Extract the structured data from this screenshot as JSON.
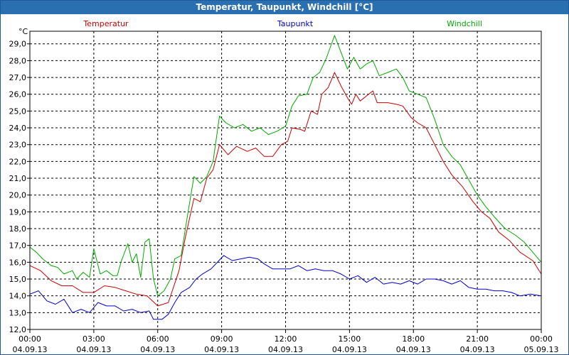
{
  "window": {
    "title": "Temperatur, Taupunkt, Windchill [°C]"
  },
  "chart_data": {
    "type": "line",
    "title": "Temperatur, Taupunkt, Windchill [°C]",
    "ylabel": "°C",
    "xlabel": "",
    "ylim": [
      12.0,
      29.75
    ],
    "xlim": [
      0,
      24
    ],
    "grid": true,
    "legend": "top",
    "y_ticks": [
      "12,0",
      "13,0",
      "14,0",
      "15,0",
      "16,0",
      "17,0",
      "18,0",
      "19,0",
      "20,0",
      "21,0",
      "22,0",
      "23,0",
      "24,0",
      "25,0",
      "26,0",
      "27,0",
      "28,0",
      "29,0"
    ],
    "x_ticks": [
      {
        "time": "00:00",
        "date": "04.09.13"
      },
      {
        "time": "03:00",
        "date": "04.09.13"
      },
      {
        "time": "06:00",
        "date": "04.09.13"
      },
      {
        "time": "09:00",
        "date": "04.09.13"
      },
      {
        "time": "12:00",
        "date": "04.09.13"
      },
      {
        "time": "15:00",
        "date": "04.09.13"
      },
      {
        "time": "18:00",
        "date": "04.09.13"
      },
      {
        "time": "21:00",
        "date": "04.09.13"
      },
      {
        "time": "00:00",
        "date": "05.09.13"
      }
    ],
    "series": [
      {
        "name": "Temperatur",
        "color": "#cc0000",
        "points": [
          [
            0,
            15.8
          ],
          [
            0.5,
            15.5
          ],
          [
            1,
            14.9
          ],
          [
            1.5,
            14.6
          ],
          [
            2,
            14.6
          ],
          [
            2.5,
            14.2
          ],
          [
            3,
            14.2
          ],
          [
            3.5,
            14.6
          ],
          [
            4,
            14.5
          ],
          [
            4.5,
            14.3
          ],
          [
            5,
            14.1
          ],
          [
            5.5,
            14.0
          ],
          [
            6,
            13.4
          ],
          [
            6.5,
            13.6
          ],
          [
            7,
            15.5
          ],
          [
            7.3,
            17.5
          ],
          [
            7.7,
            19.8
          ],
          [
            8,
            19.6
          ],
          [
            8.3,
            21.0
          ],
          [
            8.6,
            21.5
          ],
          [
            8.9,
            23.0
          ],
          [
            9.3,
            22.4
          ],
          [
            9.7,
            22.9
          ],
          [
            10.2,
            22.6
          ],
          [
            10.6,
            22.8
          ],
          [
            11,
            22.3
          ],
          [
            11.4,
            22.3
          ],
          [
            11.8,
            23.0
          ],
          [
            12.1,
            23.2
          ],
          [
            12.3,
            24.0
          ],
          [
            12.7,
            23.9
          ],
          [
            12.9,
            23.8
          ],
          [
            13.2,
            25.0
          ],
          [
            13.5,
            24.8
          ],
          [
            13.7,
            26.0
          ],
          [
            14.0,
            26.4
          ],
          [
            14.3,
            27.3
          ],
          [
            14.6,
            26.5
          ],
          [
            14.9,
            25.8
          ],
          [
            15.1,
            25.4
          ],
          [
            15.3,
            26.0
          ],
          [
            15.5,
            25.6
          ],
          [
            15.8,
            25.9
          ],
          [
            16.1,
            26.2
          ],
          [
            16.3,
            25.5
          ],
          [
            16.8,
            25.5
          ],
          [
            17.2,
            25.4
          ],
          [
            17.5,
            25.3
          ],
          [
            17.9,
            24.6
          ],
          [
            18.2,
            24.3
          ],
          [
            18.6,
            24.0
          ],
          [
            19.0,
            23.0
          ],
          [
            19.4,
            22.0
          ],
          [
            19.8,
            21.2
          ],
          [
            20.3,
            20.5
          ],
          [
            20.8,
            19.6
          ],
          [
            21.2,
            19.0
          ],
          [
            21.6,
            18.6
          ],
          [
            22.0,
            17.8
          ],
          [
            22.5,
            17.3
          ],
          [
            23.0,
            16.6
          ],
          [
            23.6,
            16.1
          ],
          [
            24,
            15.3
          ]
        ]
      },
      {
        "name": "Taupunkt",
        "color": "#0000cc",
        "points": [
          [
            0,
            14.1
          ],
          [
            0.4,
            14.3
          ],
          [
            0.8,
            13.7
          ],
          [
            1.2,
            13.5
          ],
          [
            1.6,
            13.8
          ],
          [
            2.0,
            13.0
          ],
          [
            2.4,
            13.2
          ],
          [
            2.8,
            13.0
          ],
          [
            3.2,
            13.6
          ],
          [
            3.6,
            13.4
          ],
          [
            4.0,
            13.4
          ],
          [
            4.4,
            13.1
          ],
          [
            4.8,
            13.2
          ],
          [
            5.2,
            13.0
          ],
          [
            5.6,
            13.1
          ],
          [
            5.8,
            12.6
          ],
          [
            6.2,
            12.6
          ],
          [
            6.5,
            12.9
          ],
          [
            6.8,
            13.6
          ],
          [
            7.1,
            14.2
          ],
          [
            7.5,
            14.5
          ],
          [
            7.8,
            15.0
          ],
          [
            8.1,
            15.3
          ],
          [
            8.5,
            15.6
          ],
          [
            8.8,
            16.0
          ],
          [
            9.1,
            16.4
          ],
          [
            9.5,
            16.1
          ],
          [
            9.9,
            16.2
          ],
          [
            10.3,
            16.3
          ],
          [
            10.7,
            16.2
          ],
          [
            11.0,
            15.9
          ],
          [
            11.4,
            15.6
          ],
          [
            11.8,
            15.6
          ],
          [
            12.2,
            15.6
          ],
          [
            12.6,
            15.8
          ],
          [
            13.0,
            15.5
          ],
          [
            13.4,
            15.6
          ],
          [
            13.8,
            15.5
          ],
          [
            14.2,
            15.5
          ],
          [
            14.6,
            15.3
          ],
          [
            15.0,
            15.0
          ],
          [
            15.4,
            15.2
          ],
          [
            15.8,
            14.8
          ],
          [
            16.2,
            15.1
          ],
          [
            16.6,
            14.7
          ],
          [
            17.0,
            14.8
          ],
          [
            17.4,
            14.7
          ],
          [
            17.8,
            14.9
          ],
          [
            18.2,
            14.7
          ],
          [
            18.6,
            15.0
          ],
          [
            19.0,
            15.0
          ],
          [
            19.4,
            14.9
          ],
          [
            19.8,
            14.7
          ],
          [
            20.2,
            14.9
          ],
          [
            20.6,
            14.5
          ],
          [
            21.0,
            14.4
          ],
          [
            21.4,
            14.4
          ],
          [
            21.8,
            14.3
          ],
          [
            22.2,
            14.3
          ],
          [
            22.6,
            14.2
          ],
          [
            23.0,
            14.0
          ],
          [
            23.5,
            14.1
          ],
          [
            24,
            14.0
          ]
        ]
      },
      {
        "name": "Windchill",
        "color": "#00aa00",
        "points": [
          [
            0,
            16.9
          ],
          [
            0.3,
            16.6
          ],
          [
            0.6,
            16.2
          ],
          [
            1.0,
            15.8
          ],
          [
            1.3,
            15.7
          ],
          [
            1.6,
            15.3
          ],
          [
            2.0,
            15.5
          ],
          [
            2.2,
            15.0
          ],
          [
            2.5,
            15.4
          ],
          [
            2.8,
            15.1
          ],
          [
            3.0,
            16.8
          ],
          [
            3.3,
            15.3
          ],
          [
            3.6,
            15.5
          ],
          [
            3.9,
            15.2
          ],
          [
            4.1,
            15.2
          ],
          [
            4.3,
            16.1
          ],
          [
            4.6,
            17.1
          ],
          [
            4.8,
            16.0
          ],
          [
            5.0,
            16.5
          ],
          [
            5.2,
            15.1
          ],
          [
            5.4,
            17.2
          ],
          [
            5.6,
            17.4
          ],
          [
            5.8,
            15.0
          ],
          [
            6.0,
            14.0
          ],
          [
            6.3,
            14.3
          ],
          [
            6.6,
            15.0
          ],
          [
            6.8,
            16.2
          ],
          [
            7.1,
            16.4
          ],
          [
            7.4,
            18.8
          ],
          [
            7.7,
            21.1
          ],
          [
            8.0,
            20.7
          ],
          [
            8.3,
            21.1
          ],
          [
            8.6,
            22.0
          ],
          [
            8.9,
            24.7
          ],
          [
            9.2,
            24.3
          ],
          [
            9.6,
            24.0
          ],
          [
            10.0,
            24.2
          ],
          [
            10.4,
            23.8
          ],
          [
            10.8,
            24.0
          ],
          [
            11.2,
            23.6
          ],
          [
            11.6,
            23.8
          ],
          [
            12.0,
            24.1
          ],
          [
            12.3,
            25.3
          ],
          [
            12.6,
            25.9
          ],
          [
            13.0,
            26.0
          ],
          [
            13.3,
            27.0
          ],
          [
            13.6,
            27.3
          ],
          [
            13.9,
            28.1
          ],
          [
            14.1,
            28.8
          ],
          [
            14.3,
            29.5
          ],
          [
            14.6,
            28.5
          ],
          [
            14.9,
            27.5
          ],
          [
            15.2,
            28.2
          ],
          [
            15.5,
            27.5
          ],
          [
            15.8,
            27.8
          ],
          [
            16.1,
            28.0
          ],
          [
            16.4,
            27.1
          ],
          [
            16.8,
            27.3
          ],
          [
            17.2,
            27.5
          ],
          [
            17.5,
            27.0
          ],
          [
            17.8,
            26.2
          ],
          [
            18.2,
            26.0
          ],
          [
            18.6,
            25.8
          ],
          [
            19.0,
            24.5
          ],
          [
            19.4,
            23.0
          ],
          [
            19.8,
            22.3
          ],
          [
            20.2,
            21.8
          ],
          [
            20.6,
            20.9
          ],
          [
            21.0,
            20.0
          ],
          [
            21.4,
            19.3
          ],
          [
            21.8,
            18.7
          ],
          [
            22.3,
            18.0
          ],
          [
            22.8,
            17.6
          ],
          [
            23.2,
            17.2
          ],
          [
            23.6,
            16.6
          ],
          [
            24,
            16.0
          ]
        ]
      }
    ]
  }
}
